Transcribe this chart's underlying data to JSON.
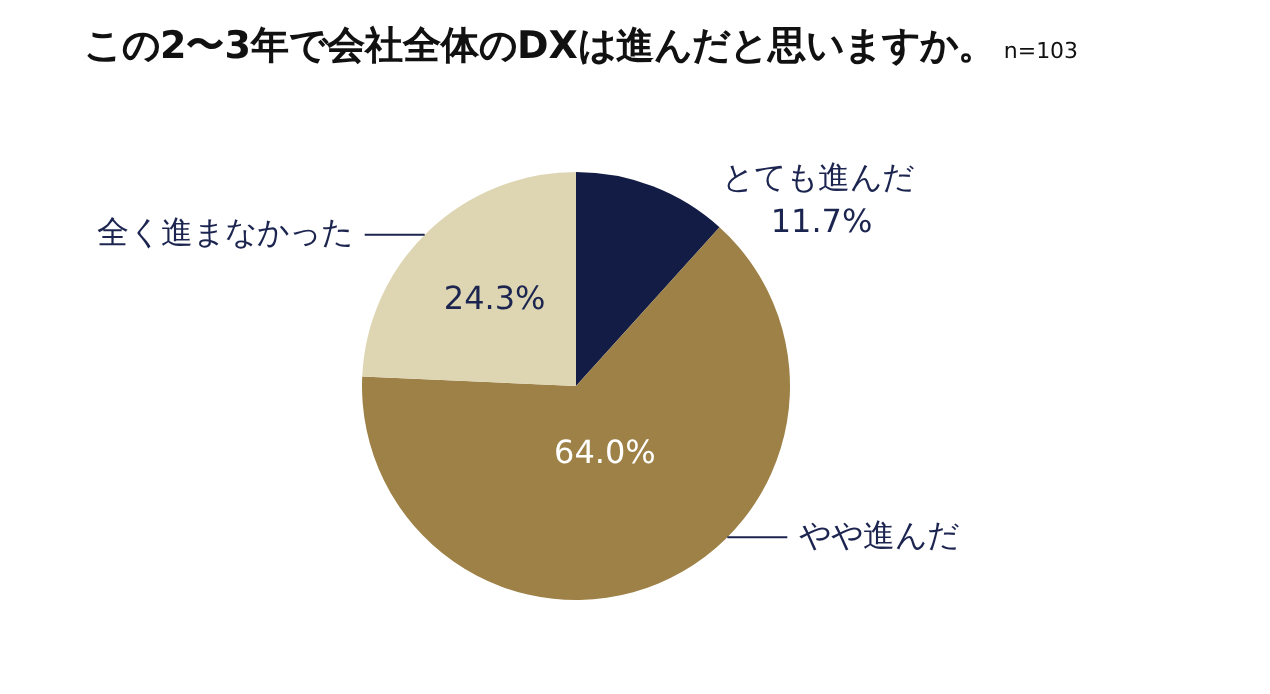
{
  "chart_data": {
    "type": "pie",
    "title": "この2〜3年で会社全体のDXは進んだと思いますか。",
    "subtitle": "n=103",
    "categories": [
      "とても進んだ",
      "やや進んだ",
      "全く進まなかった"
    ],
    "values": [
      11.7,
      64.0,
      24.3
    ],
    "value_labels": [
      "11.7%",
      "64.0%",
      "24.3%"
    ],
    "colors": [
      "#121c45",
      "#9e8147",
      "#ded6b3"
    ],
    "legend": false
  }
}
